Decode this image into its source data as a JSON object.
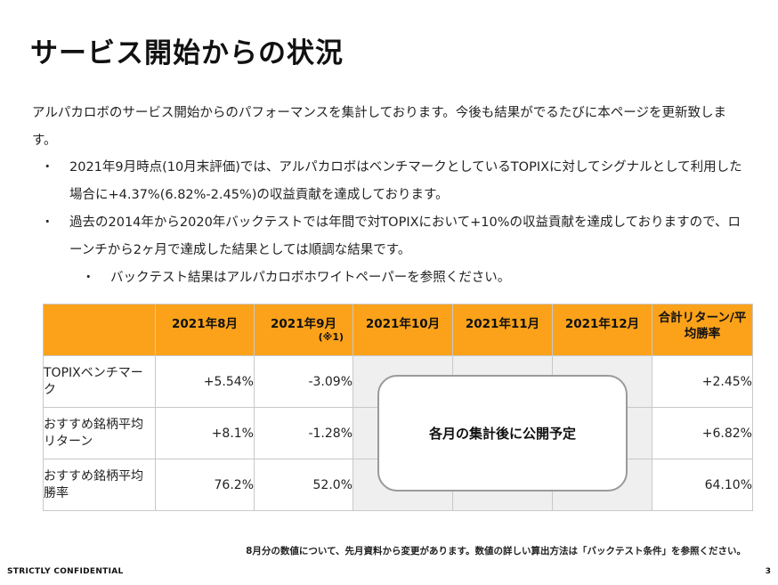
{
  "title": "サービス開始からの状況",
  "intro": "アルパカロボのサービス開始からのパフォーマンスを集計しております。今後も結果がでるたびに本ページを更新致します。",
  "bullets": [
    {
      "marker": "・",
      "text": "2021年9月時点(10月末評価)では、アルパカロボはベンチマークとしているTOPIXに対してシグナルとして利用した場合に+4.37%(6.82%-2.45%)の収益貢献を達成しております。"
    },
    {
      "marker": "・",
      "text": "過去の2014年から2020年バックテストでは年間で対TOPIXにおいて+10%の収益貢献を達成しておりますので、ローンチから2ヶ月で達成した結果としては順調な結果です。"
    },
    {
      "marker": "・",
      "text": "バックテスト結果はアルパカロボホワイトペーパーを参照ください。"
    }
  ],
  "table": {
    "headers": [
      "2021年8月",
      "2021年9月",
      "2021年10月",
      "2021年11月",
      "2021年12月",
      "合計リターン/平均勝率"
    ],
    "header_note": "(※1)",
    "rows": [
      {
        "label": "TOPIXベンチマーク",
        "aug": "+5.54%",
        "sep": "-3.09%",
        "total": "+2.45%"
      },
      {
        "label": "おすすめ銘柄平均リターン",
        "aug": "+8.1%",
        "sep": "-1.28%",
        "total": "+6.82%"
      },
      {
        "label": "おすすめ銘柄平均勝率",
        "aug": "76.2%",
        "sep": "52.0%",
        "total": "64.10%"
      }
    ],
    "pending_message": "各月の集計後に公開予定"
  },
  "footnote": "8月分の数値について、先月資料から変更があります。数値の詳しい算出方法は「バックテスト条件」を参照ください。",
  "footer": {
    "confidential": "STRICTLY CONFIDENTIAL",
    "page_number": "3"
  },
  "colors": {
    "header_fill": "#fba21a",
    "pending_fill": "#efefef"
  }
}
